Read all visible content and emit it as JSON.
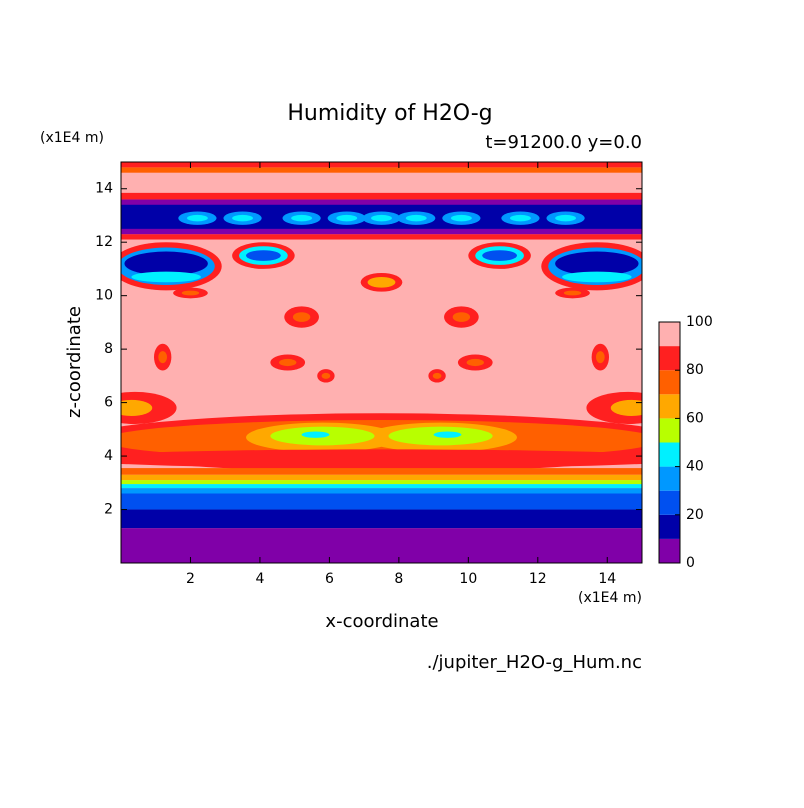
{
  "chart_data": {
    "type": "contour",
    "title": "Humidity of H2O-g",
    "subtitle": "t=91200.0 y=0.0",
    "x_label": "x-coordinate",
    "y_label": "z-coordinate",
    "x_unit": "(x1E4 m)",
    "y_unit": "(x1E4 m)",
    "source": "./jupiter_H2O-g_Hum.nc",
    "xlim": [
      0,
      15
    ],
    "xticks": [
      2,
      4,
      6,
      8,
      10,
      12,
      14
    ],
    "ylim": [
      0,
      15
    ],
    "yticks": [
      2,
      4,
      6,
      8,
      10,
      12,
      14
    ],
    "colorbar": {
      "lim": [
        0,
        100
      ],
      "ticks": [
        0,
        20,
        40,
        60,
        80,
        100
      ],
      "colors": [
        "#8000a8",
        "#0000a8",
        "#0050f0",
        "#0098ff",
        "#00f0ff",
        "#b8ff00",
        "#ffa800",
        "#ff6000",
        "#ff2020",
        "#ffb0b0"
      ]
    }
  }
}
